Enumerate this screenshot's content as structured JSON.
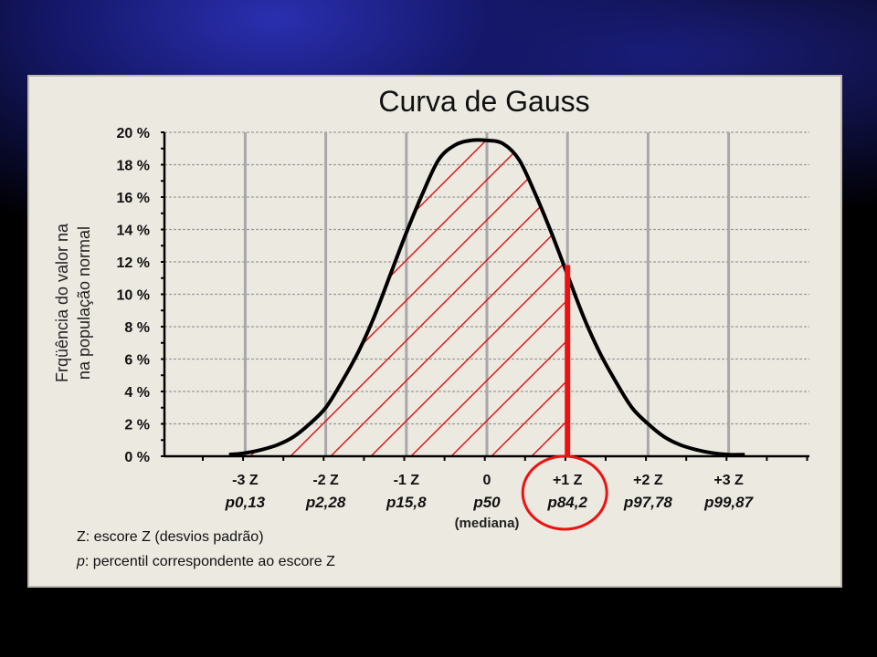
{
  "chart_data": {
    "type": "area",
    "title": "Curva de Gauss",
    "ylabel_line1": "Frqüência do valor na",
    "ylabel_line2": "na população normal",
    "ylim": [
      0,
      20
    ],
    "xlim": [
      -3.2,
      3.2
    ],
    "y_ticks": [
      {
        "value": 0,
        "label": "0 %"
      },
      {
        "value": 2,
        "label": "2 %"
      },
      {
        "value": 4,
        "label": "4 %"
      },
      {
        "value": 6,
        "label": "6 %"
      },
      {
        "value": 8,
        "label": "8 %"
      },
      {
        "value": 10,
        "label": "10 %"
      },
      {
        "value": 12,
        "label": "12 %"
      },
      {
        "value": 14,
        "label": "14 %"
      },
      {
        "value": 16,
        "label": "16 %"
      },
      {
        "value": 18,
        "label": "18 %"
      },
      {
        "value": 20,
        "label": "20 %"
      }
    ],
    "x_ticks": [
      {
        "value": -3,
        "z": "-3 Z",
        "p": "p0,13"
      },
      {
        "value": -2,
        "z": "-2 Z",
        "p": "p2,28"
      },
      {
        "value": -1,
        "z": "-1 Z",
        "p": "p15,8"
      },
      {
        "value": 0,
        "z": "0",
        "p": "p50"
      },
      {
        "value": 1,
        "z": "+1 Z",
        "p": "p84,2"
      },
      {
        "value": 2,
        "z": "+2 Z",
        "p": "p97,78"
      },
      {
        "value": 3,
        "z": "+3 Z",
        "p": "p99,87"
      }
    ],
    "median_label": "(mediana)",
    "curve": {
      "x": [
        -3.2,
        -3.0,
        -2.8,
        -2.6,
        -2.4,
        -2.2,
        -2.0,
        -1.8,
        -1.6,
        -1.4,
        -1.2,
        -1.0,
        -0.8,
        -0.6,
        -0.4,
        -0.2,
        0.0,
        0.2,
        0.4,
        0.6,
        0.8,
        1.0,
        1.2,
        1.4,
        1.6,
        1.8,
        2.0,
        2.2,
        2.4,
        2.6,
        2.8,
        3.0,
        3.2
      ],
      "y": [
        0.1,
        0.2,
        0.4,
        0.7,
        1.2,
        2.0,
        3.0,
        4.6,
        6.4,
        8.6,
        11.2,
        13.8,
        16.2,
        18.3,
        19.2,
        19.5,
        19.5,
        19.3,
        18.3,
        16.2,
        13.8,
        11.2,
        8.6,
        6.4,
        4.6,
        3.0,
        2.0,
        1.2,
        0.7,
        0.4,
        0.2,
        0.1,
        0.1
      ]
    },
    "shaded_region": {
      "from": -3.2,
      "to": 1.0
    },
    "marker": {
      "x": 1.0,
      "y_top": 11.8,
      "color": "#ee1111"
    },
    "highlight_circle": {
      "x": 1.0,
      "color": "#ee1111"
    },
    "grid": true,
    "colors": {
      "curve": "#000000",
      "hatch": "#dd1111",
      "grid": "#9a9a9a",
      "marker": "#ee1111"
    }
  },
  "legend": {
    "z_symbol": "Z",
    "z_text": ": escore Z (desvios padrão)",
    "p_symbol": "p",
    "p_text": ": percentil correspondente ao escore Z"
  }
}
